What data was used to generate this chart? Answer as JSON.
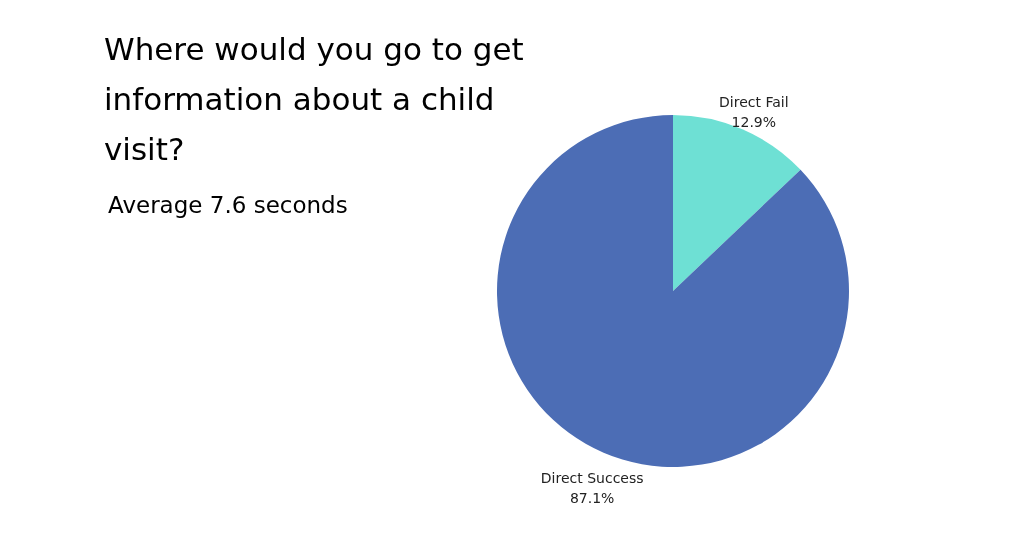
{
  "chart_data": {
    "type": "pie",
    "title": "Where would you go to get information about a child visit?",
    "subtitle": "Average 7.6 seconds",
    "categories": [
      "Direct Fail",
      "Direct Success"
    ],
    "values": [
      12.9,
      87.1
    ],
    "value_labels": [
      "12.9%",
      "87.1%"
    ],
    "colors": [
      "#6ee0d4",
      "#4c6db5"
    ],
    "legend": false
  }
}
